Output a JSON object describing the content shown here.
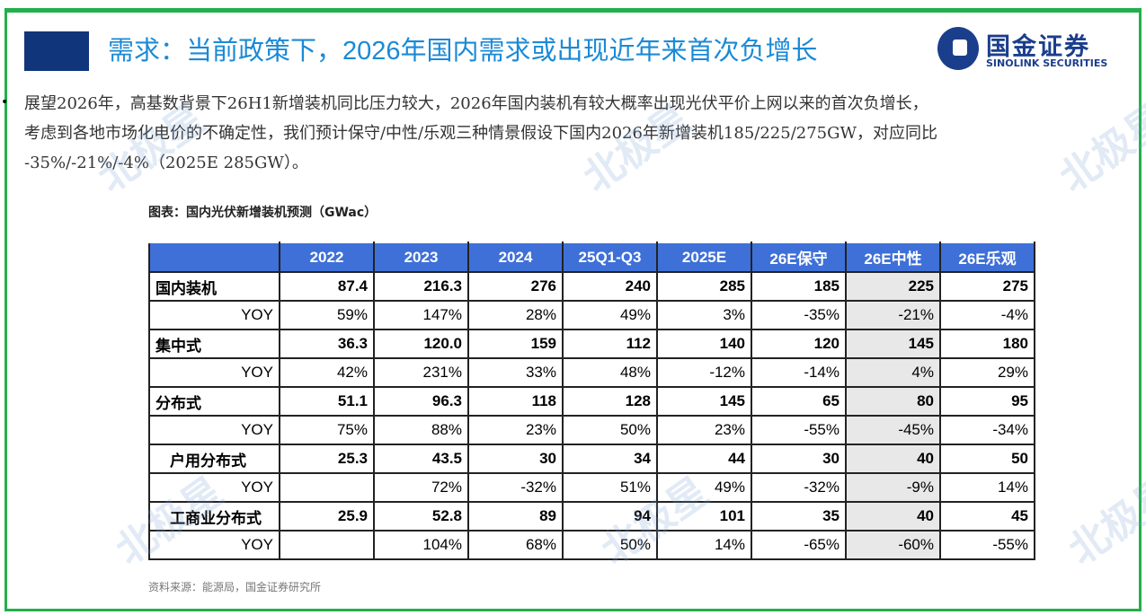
{
  "title": "需求：当前政策下，2026年国内需求或出现近年来首次负增长",
  "logo": {
    "cn": "国金证券",
    "en": "SINOLINK SECURITIES"
  },
  "bullet": "•",
  "body_lines": [
    "展望2026年，高基数背景下26H1新增装机同比压力较大，2026年国内装机有较大概率出现光伏平价上网以来的首次负增长，",
    "考虑到各地市场化电价的不确定性，我们预计保守/中性/乐观三种情景假设下国内2026年新增装机185/225/275GW，对应同比",
    "-35%/-21%/-4%（2025E 285GW）。"
  ],
  "caption": "图表：国内光伏新增装机预测（GWac）",
  "table": {
    "headers": [
      "",
      "2022",
      "2023",
      "2024",
      "25Q1-Q3",
      "2025E",
      "26E保守",
      "26E中性",
      "26E乐观"
    ],
    "rows": [
      [
        "国内装机",
        "87.4",
        "216.3",
        "276",
        "240",
        "285",
        "185",
        "225",
        "275"
      ],
      [
        "YOY",
        "59%",
        "147%",
        "28%",
        "49%",
        "3%",
        "-35%",
        "-21%",
        "-4%"
      ],
      [
        "集中式",
        "36.3",
        "120.0",
        "159",
        "112",
        "140",
        "120",
        "145",
        "180"
      ],
      [
        "YOY",
        "42%",
        "231%",
        "33%",
        "48%",
        "-12%",
        "-14%",
        "4%",
        "29%"
      ],
      [
        "分布式",
        "51.1",
        "96.3",
        "118",
        "128",
        "145",
        "65",
        "80",
        "95"
      ],
      [
        "YOY",
        "75%",
        "88%",
        "23%",
        "50%",
        "23%",
        "-55%",
        "-45%",
        "-34%"
      ],
      [
        "户用分布式",
        "25.3",
        "43.5",
        "30",
        "34",
        "44",
        "30",
        "40",
        "50"
      ],
      [
        "YOY",
        "",
        "72%",
        "-32%",
        "51%",
        "49%",
        "-32%",
        "-9%",
        "14%"
      ],
      [
        "工商业分布式",
        "25.9",
        "52.8",
        "89",
        "94",
        "101",
        "35",
        "40",
        "45"
      ],
      [
        "YOY",
        "",
        "104%",
        "68%",
        "50%",
        "14%",
        "-65%",
        "-60%",
        "-55%"
      ]
    ]
  },
  "source": "资料来源：能源局，国金证券研究所",
  "watermark": "北极星",
  "colors": {
    "border": "#22b04a",
    "title": "#1b8ad6",
    "header": "#3e70d8",
    "highlight_col": "#e8e8e8"
  }
}
